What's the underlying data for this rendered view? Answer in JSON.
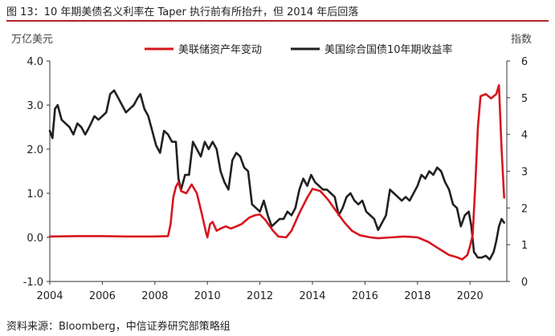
{
  "title": "图 13：10 年期美债名义利率在 Taper 执行前有所抬升，但 2014 年后回落",
  "source": "资料来源：Bloomberg，中信证券研究部策略组",
  "chart_data": {
    "type": "line",
    "left_axis_unit": "万亿美元",
    "right_axis_unit": "指数",
    "x_ticks": [
      "2004",
      "2006",
      "2008",
      "2010",
      "2012",
      "2014",
      "2016",
      "2018",
      "2020"
    ],
    "y_left_ticks": [
      "-1.0",
      "0.0",
      "1.0",
      "2.0",
      "3.0",
      "4.0"
    ],
    "y_right_ticks": [
      "0",
      "1",
      "2",
      "3",
      "4",
      "5",
      "6"
    ],
    "y_left_range": [
      -1,
      4
    ],
    "y_right_range": [
      0,
      6
    ],
    "x_range": [
      2004,
      2021.4
    ],
    "legend_position": "top-center",
    "series": [
      {
        "name": "美联储资产年变动",
        "axis": "left",
        "color": "#d7161e",
        "points": [
          [
            2004.0,
            0.02
          ],
          [
            2005.0,
            0.03
          ],
          [
            2006.0,
            0.03
          ],
          [
            2007.0,
            0.02
          ],
          [
            2007.9,
            0.02
          ],
          [
            2008.5,
            0.03
          ],
          [
            2008.6,
            0.3
          ],
          [
            2008.7,
            0.9
          ],
          [
            2008.8,
            1.15
          ],
          [
            2008.9,
            1.25
          ],
          [
            2009.0,
            1.05
          ],
          [
            2009.2,
            1.0
          ],
          [
            2009.4,
            1.2
          ],
          [
            2009.6,
            1.0
          ],
          [
            2009.8,
            0.5
          ],
          [
            2009.95,
            0.1
          ],
          [
            2010.0,
            0.0
          ],
          [
            2010.1,
            0.3
          ],
          [
            2010.2,
            0.35
          ],
          [
            2010.35,
            0.15
          ],
          [
            2010.5,
            0.2
          ],
          [
            2010.7,
            0.25
          ],
          [
            2010.9,
            0.2
          ],
          [
            2011.1,
            0.25
          ],
          [
            2011.3,
            0.3
          ],
          [
            2011.6,
            0.45
          ],
          [
            2011.8,
            0.5
          ],
          [
            2012.0,
            0.52
          ],
          [
            2012.2,
            0.4
          ],
          [
            2012.5,
            0.15
          ],
          [
            2012.7,
            0.02
          ],
          [
            2013.0,
            0.0
          ],
          [
            2013.2,
            0.15
          ],
          [
            2013.5,
            0.55
          ],
          [
            2013.8,
            0.9
          ],
          [
            2014.0,
            1.1
          ],
          [
            2014.3,
            1.05
          ],
          [
            2014.6,
            0.85
          ],
          [
            2014.9,
            0.6
          ],
          [
            2015.2,
            0.35
          ],
          [
            2015.5,
            0.15
          ],
          [
            2015.8,
            0.05
          ],
          [
            2016.2,
            0.0
          ],
          [
            2016.5,
            -0.02
          ],
          [
            2017.0,
            0.0
          ],
          [
            2017.5,
            0.02
          ],
          [
            2018.0,
            0.0
          ],
          [
            2018.4,
            -0.1
          ],
          [
            2018.8,
            -0.25
          ],
          [
            2019.2,
            -0.4
          ],
          [
            2019.5,
            -0.45
          ],
          [
            2019.7,
            -0.5
          ],
          [
            2019.9,
            -0.4
          ],
          [
            2020.0,
            -0.2
          ],
          [
            2020.1,
            0.05
          ],
          [
            2020.2,
            1.2
          ],
          [
            2020.3,
            2.5
          ],
          [
            2020.4,
            3.2
          ],
          [
            2020.6,
            3.25
          ],
          [
            2020.8,
            3.15
          ],
          [
            2021.0,
            3.25
          ],
          [
            2021.1,
            3.45
          ],
          [
            2021.2,
            2.0
          ],
          [
            2021.3,
            0.9
          ]
        ]
      },
      {
        "name": "美国综合国债10年期收益率",
        "axis": "right",
        "color": "#231f20",
        "points": [
          [
            2004.0,
            4.1
          ],
          [
            2004.1,
            3.9
          ],
          [
            2004.2,
            4.7
          ],
          [
            2004.3,
            4.8
          ],
          [
            2004.45,
            4.4
          ],
          [
            2004.6,
            4.3
          ],
          [
            2004.75,
            4.2
          ],
          [
            2004.9,
            4.0
          ],
          [
            2005.05,
            4.3
          ],
          [
            2005.2,
            4.2
          ],
          [
            2005.35,
            4.0
          ],
          [
            2005.5,
            4.2
          ],
          [
            2005.7,
            4.5
          ],
          [
            2005.85,
            4.4
          ],
          [
            2006.0,
            4.5
          ],
          [
            2006.15,
            4.6
          ],
          [
            2006.3,
            5.1
          ],
          [
            2006.45,
            5.2
          ],
          [
            2006.6,
            5.0
          ],
          [
            2006.75,
            4.8
          ],
          [
            2006.9,
            4.6
          ],
          [
            2007.05,
            4.7
          ],
          [
            2007.2,
            4.8
          ],
          [
            2007.35,
            5.0
          ],
          [
            2007.45,
            5.1
          ],
          [
            2007.6,
            4.7
          ],
          [
            2007.75,
            4.5
          ],
          [
            2007.9,
            4.1
          ],
          [
            2008.05,
            3.7
          ],
          [
            2008.2,
            3.5
          ],
          [
            2008.35,
            4.1
          ],
          [
            2008.5,
            4.0
          ],
          [
            2008.65,
            3.8
          ],
          [
            2008.8,
            3.8
          ],
          [
            2008.9,
            2.8
          ],
          [
            2009.0,
            2.5
          ],
          [
            2009.15,
            2.9
          ],
          [
            2009.3,
            2.9
          ],
          [
            2009.45,
            3.8
          ],
          [
            2009.6,
            3.6
          ],
          [
            2009.75,
            3.4
          ],
          [
            2009.9,
            3.8
          ],
          [
            2010.05,
            3.6
          ],
          [
            2010.2,
            3.8
          ],
          [
            2010.35,
            3.6
          ],
          [
            2010.5,
            3.0
          ],
          [
            2010.65,
            2.7
          ],
          [
            2010.8,
            2.5
          ],
          [
            2010.95,
            3.3
          ],
          [
            2011.1,
            3.5
          ],
          [
            2011.25,
            3.4
          ],
          [
            2011.4,
            3.1
          ],
          [
            2011.55,
            3.0
          ],
          [
            2011.7,
            2.1
          ],
          [
            2011.85,
            2.0
          ],
          [
            2012.0,
            1.9
          ],
          [
            2012.15,
            2.2
          ],
          [
            2012.3,
            1.8
          ],
          [
            2012.45,
            1.5
          ],
          [
            2012.6,
            1.6
          ],
          [
            2012.75,
            1.7
          ],
          [
            2012.9,
            1.7
          ],
          [
            2013.05,
            1.9
          ],
          [
            2013.2,
            1.8
          ],
          [
            2013.35,
            2.0
          ],
          [
            2013.5,
            2.5
          ],
          [
            2013.65,
            2.8
          ],
          [
            2013.8,
            2.6
          ],
          [
            2013.95,
            2.9
          ],
          [
            2014.1,
            2.7
          ],
          [
            2014.25,
            2.6
          ],
          [
            2014.4,
            2.5
          ],
          [
            2014.55,
            2.5
          ],
          [
            2014.7,
            2.4
          ],
          [
            2014.85,
            2.3
          ],
          [
            2015.0,
            1.8
          ],
          [
            2015.15,
            2.0
          ],
          [
            2015.3,
            2.3
          ],
          [
            2015.45,
            2.4
          ],
          [
            2015.6,
            2.2
          ],
          [
            2015.75,
            2.1
          ],
          [
            2015.9,
            2.2
          ],
          [
            2016.05,
            1.9
          ],
          [
            2016.2,
            1.8
          ],
          [
            2016.35,
            1.7
          ],
          [
            2016.5,
            1.4
          ],
          [
            2016.65,
            1.6
          ],
          [
            2016.8,
            1.8
          ],
          [
            2016.95,
            2.5
          ],
          [
            2017.1,
            2.4
          ],
          [
            2017.25,
            2.3
          ],
          [
            2017.4,
            2.2
          ],
          [
            2017.55,
            2.3
          ],
          [
            2017.7,
            2.2
          ],
          [
            2017.85,
            2.4
          ],
          [
            2018.0,
            2.6
          ],
          [
            2018.15,
            2.9
          ],
          [
            2018.3,
            2.8
          ],
          [
            2018.45,
            3.0
          ],
          [
            2018.6,
            2.9
          ],
          [
            2018.75,
            3.1
          ],
          [
            2018.9,
            3.0
          ],
          [
            2019.05,
            2.7
          ],
          [
            2019.2,
            2.5
          ],
          [
            2019.35,
            2.1
          ],
          [
            2019.5,
            2.0
          ],
          [
            2019.65,
            1.5
          ],
          [
            2019.8,
            1.8
          ],
          [
            2019.95,
            1.9
          ],
          [
            2020.05,
            1.5
          ],
          [
            2020.15,
            0.8
          ],
          [
            2020.3,
            0.65
          ],
          [
            2020.45,
            0.65
          ],
          [
            2020.6,
            0.7
          ],
          [
            2020.75,
            0.6
          ],
          [
            2020.9,
            0.8
          ],
          [
            2021.0,
            1.1
          ],
          [
            2021.1,
            1.5
          ],
          [
            2021.2,
            1.7
          ],
          [
            2021.3,
            1.6
          ]
        ]
      }
    ]
  }
}
